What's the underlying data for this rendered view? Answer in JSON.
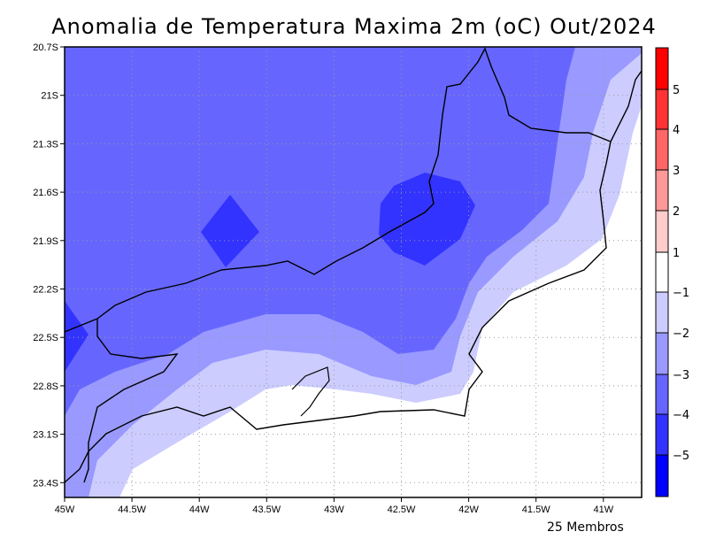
{
  "title": "Anomalia de Temperatura Maxima 2m (oC) Out/2024",
  "footer": "25 Membros",
  "x_ticks": [
    "45W",
    "44.5W",
    "44W",
    "43.5W",
    "43W",
    "42.5W",
    "42W",
    "41.5W",
    "41W"
  ],
  "y_ticks": [
    "20.7S",
    "21S",
    "21.3S",
    "21.6S",
    "21.9S",
    "22.2S",
    "22.5S",
    "22.8S",
    "23.1S",
    "23.4S"
  ],
  "colorbar": {
    "labels": [
      "5",
      "4",
      "3",
      "2",
      "1",
      "−1",
      "−2",
      "−3",
      "−4",
      "−5"
    ],
    "colors": [
      "#ff0000",
      "#ff3333",
      "#ff6666",
      "#ff9999",
      "#ffcccc",
      "#ffffff",
      "#ccccff",
      "#9999ff",
      "#6666ff",
      "#3333ff",
      "#0000ff"
    ]
  }
}
